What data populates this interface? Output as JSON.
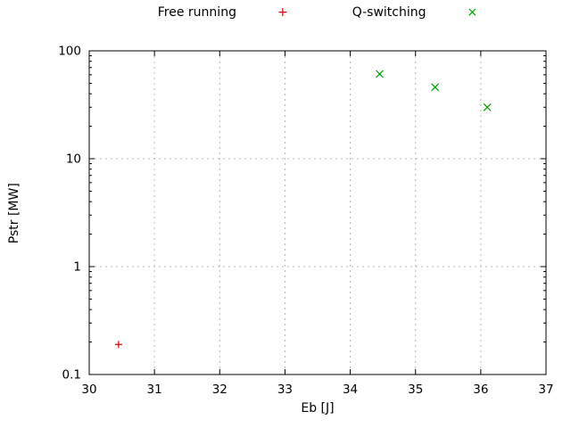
{
  "chart_data": {
    "type": "scatter",
    "title": "",
    "xlabel": "Eb [J]",
    "ylabel": "Pstr [MW]",
    "xlim": [
      30,
      37
    ],
    "xticks": [
      30,
      31,
      32,
      33,
      34,
      35,
      36,
      37
    ],
    "yscale": "log",
    "ylim": [
      0.1,
      100
    ],
    "yticks": [
      0.1,
      1,
      10,
      100
    ],
    "grid": true,
    "grid_style": "dashed",
    "grid_color": "#b8b8b8",
    "axis_color": "#000000",
    "legend_position": "top-outside-center",
    "series": [
      {
        "name": "Free running",
        "marker": "plus",
        "color": "#cc0000",
        "points": [
          [
            30.45,
            0.19
          ]
        ]
      },
      {
        "name": "Q-switching",
        "marker": "cross",
        "color": "#00a000",
        "points": [
          [
            34.45,
            61
          ],
          [
            35.3,
            46
          ],
          [
            36.1,
            30
          ]
        ]
      }
    ]
  }
}
